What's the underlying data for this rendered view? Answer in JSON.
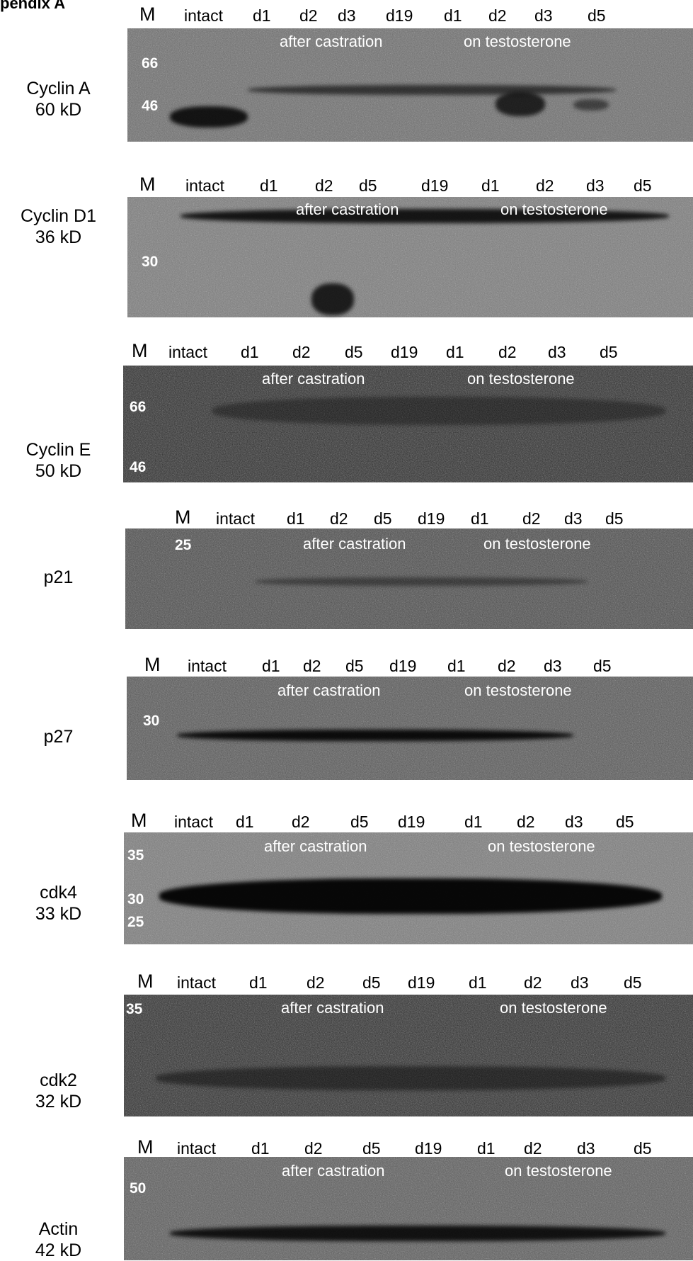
{
  "header": "pendix A",
  "panels": [
    {
      "protein": "Cyclin A",
      "size": "60 kD",
      "lanes": [
        "M",
        "intact",
        "d1",
        "d2",
        "d3",
        "d19",
        "d1",
        "d2",
        "d3",
        "d5"
      ],
      "conditions": [
        "after castration",
        "on testosterone"
      ],
      "markers": [
        "66",
        "46"
      ],
      "blot_tone": "#6c6c6c"
    },
    {
      "protein": "Cyclin D1",
      "size": "36 kD",
      "lanes": [
        "M",
        "intact",
        "d1",
        "d2",
        "d5",
        "d19",
        "d1",
        "d2",
        "d3",
        "d5"
      ],
      "conditions": [
        "after castration",
        "on testosterone"
      ],
      "markers": [
        "30"
      ],
      "blot_tone": "#7a7a7a"
    },
    {
      "protein": "Cyclin E",
      "size": "50 kD",
      "lanes": [
        "M",
        "intact",
        "d1",
        "d2",
        "d5",
        "d19",
        "d1",
        "d2",
        "d3",
        "d5"
      ],
      "conditions": [
        "after castration",
        "on testosterone"
      ],
      "markers": [
        "66",
        "46"
      ],
      "blot_tone": "#2a2a2a"
    },
    {
      "protein": "p21",
      "size": "",
      "lanes": [
        "M",
        "intact",
        "d1",
        "d2",
        "d5",
        "d19",
        "d1",
        "d2",
        "d3",
        "d5"
      ],
      "conditions": [
        "after castration",
        "on testosterone"
      ],
      "markers": [
        "25"
      ],
      "blot_tone": "#4a4a4a"
    },
    {
      "protein": "p27",
      "size": "",
      "lanes": [
        "M",
        "intact",
        "d1",
        "d2",
        "d5",
        "d19",
        "d1",
        "d2",
        "d3",
        "d5"
      ],
      "conditions": [
        "after castration",
        "on testosterone"
      ],
      "markers": [
        "30"
      ],
      "blot_tone": "#565656"
    },
    {
      "protein": "cdk4",
      "size": "33 kD",
      "lanes": [
        "M",
        "intact",
        "d1",
        "d2",
        "d5",
        "d19",
        "d1",
        "d2",
        "d3",
        "d5"
      ],
      "conditions": [
        "after castration",
        "on testosterone"
      ],
      "markers": [
        "35",
        "30",
        "25"
      ],
      "blot_tone": "#7a7a7a"
    },
    {
      "protein": "cdk2",
      "size": "32 kD",
      "lanes": [
        "M",
        "intact",
        "d1",
        "d2",
        "d5",
        "d19",
        "d1",
        "d2",
        "d3",
        "d5"
      ],
      "conditions": [
        "after castration",
        "on testosterone"
      ],
      "markers": [
        "35"
      ],
      "blot_tone": "#2c2c2c"
    },
    {
      "protein": "Actin",
      "size": "42 kD",
      "lanes": [
        "M",
        "intact",
        "d1",
        "d2",
        "d5",
        "d19",
        "d1",
        "d2",
        "d3",
        "d5"
      ],
      "conditions": [
        "after castration",
        "on testosterone"
      ],
      "markers": [
        "50"
      ],
      "blot_tone": "#5a5a5a"
    }
  ]
}
